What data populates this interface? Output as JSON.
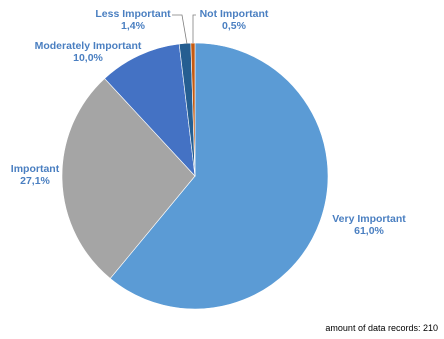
{
  "chart_data": {
    "type": "pie",
    "slices": [
      {
        "label": "Very Important",
        "value_text": "61,0%",
        "value": 61.0,
        "color": "#5b9bd5"
      },
      {
        "label": "Important",
        "value_text": "27,1%",
        "value": 27.1,
        "color": "#a5a5a5"
      },
      {
        "label": "Moderately Important",
        "value_text": "10,0%",
        "value": 10.0,
        "color": "#4472c4"
      },
      {
        "label": "Less Important",
        "value_text": "1,4%",
        "value": 1.4,
        "color": "#255e91"
      },
      {
        "label": "Not Important",
        "value_text": "0,5%",
        "value": 0.5,
        "color": "#c55a11"
      }
    ],
    "label_color": "#4a7fc1",
    "start_angle_deg": 0,
    "direction": "clockwise",
    "legend": "none"
  },
  "footnote": "amount of data records: 210"
}
